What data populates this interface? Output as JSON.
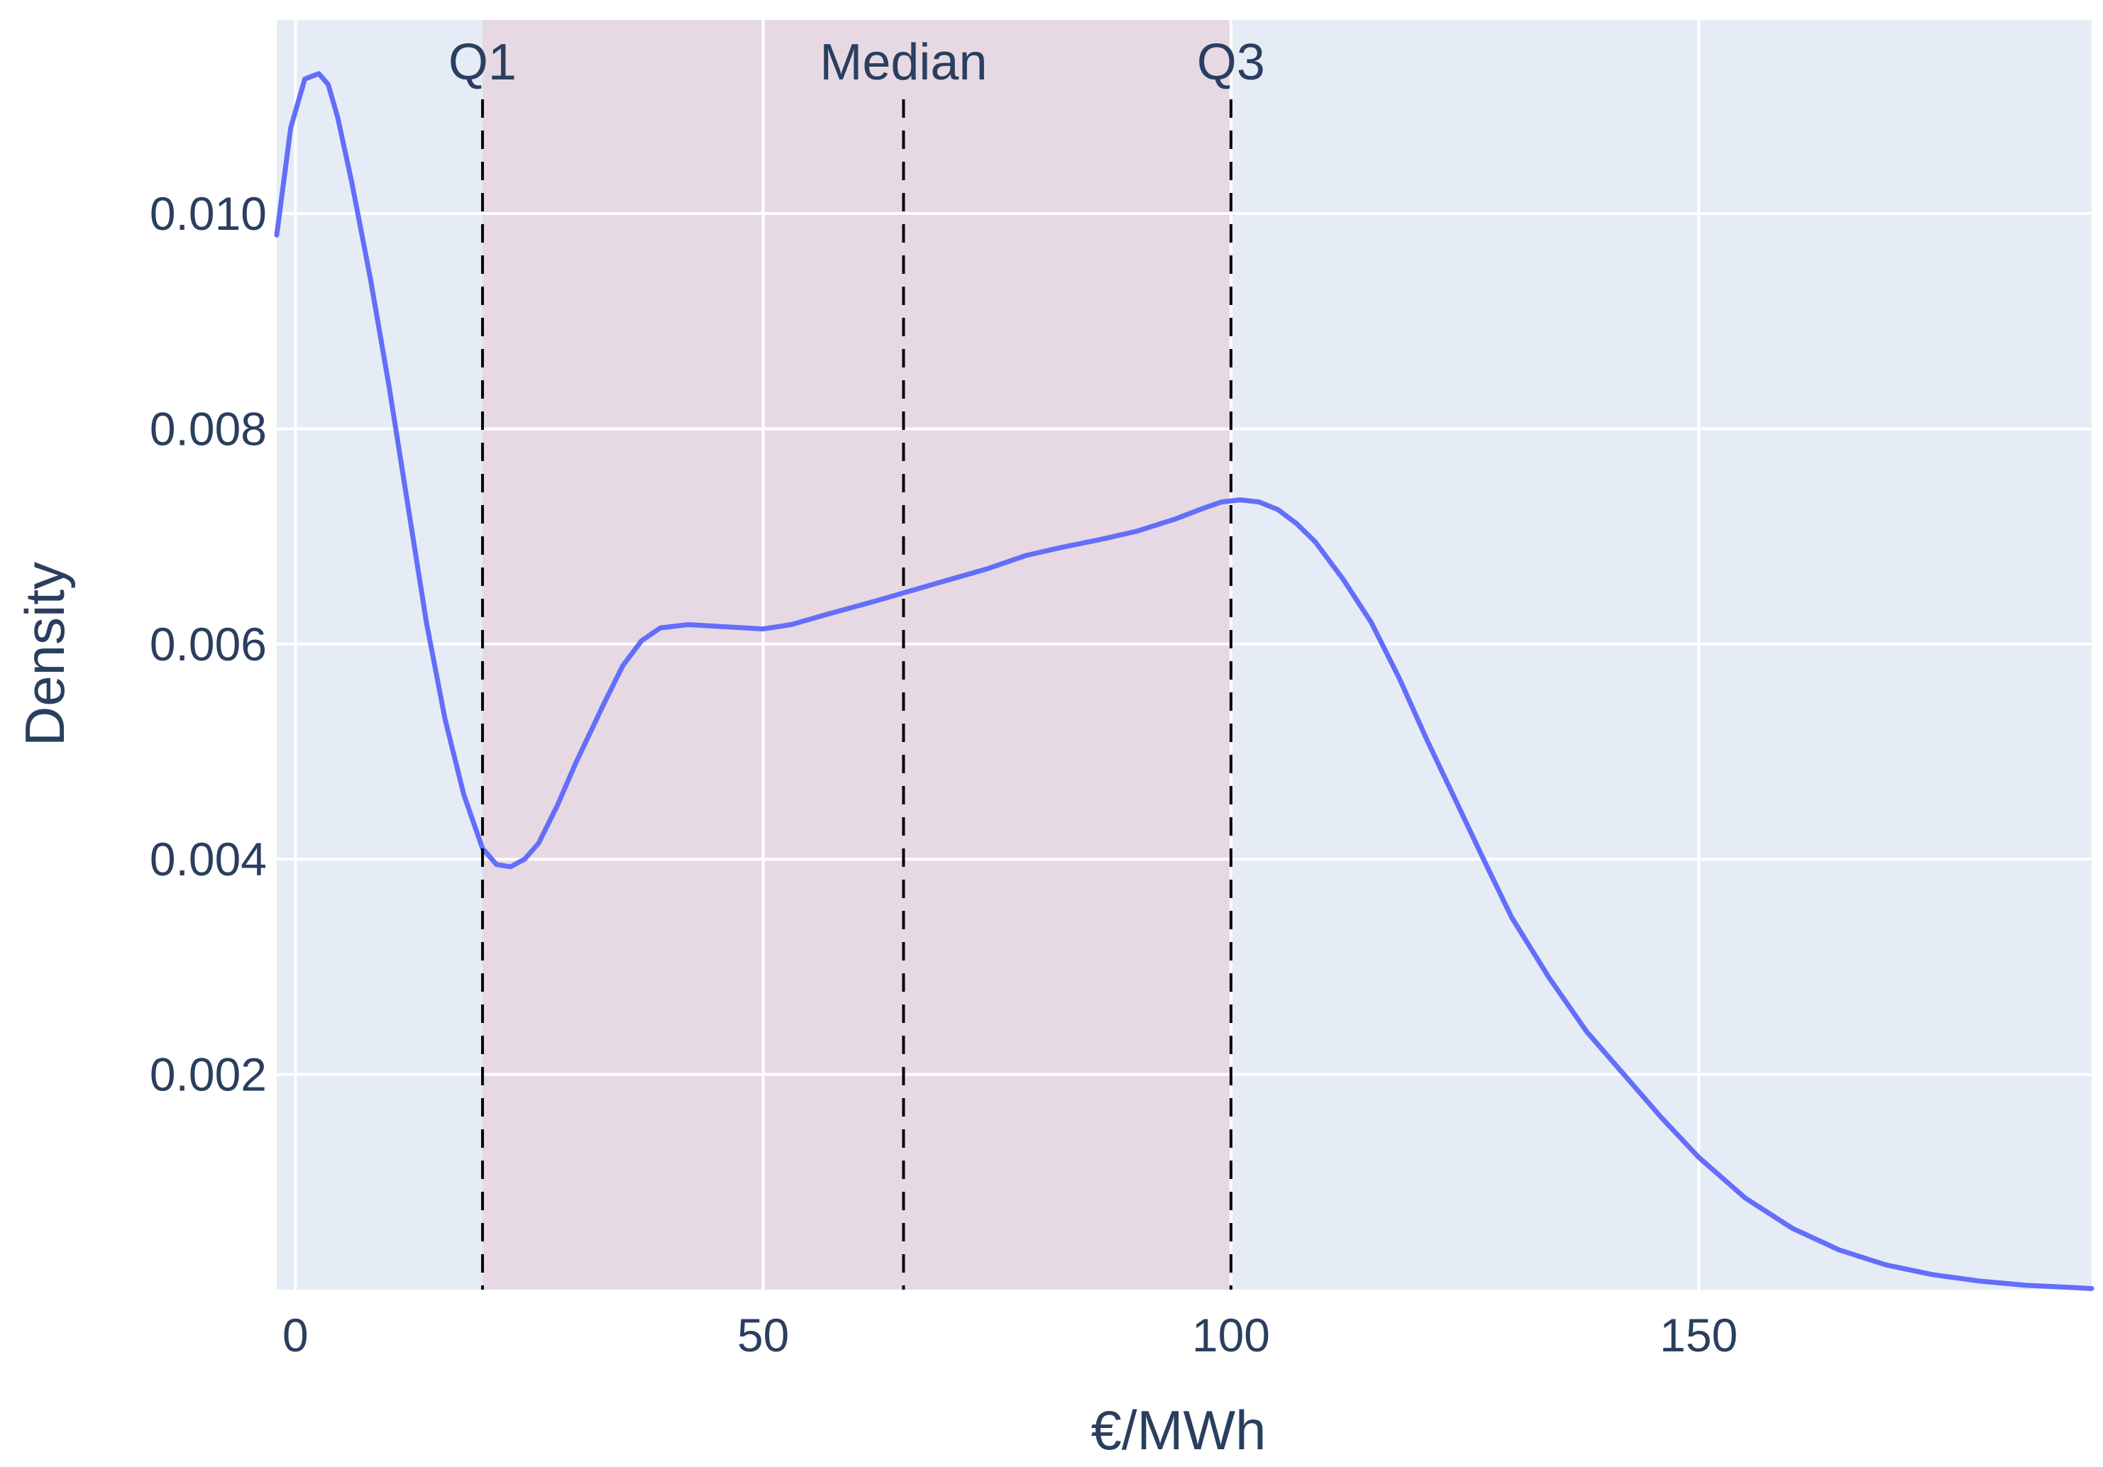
{
  "chart_data": {
    "type": "area",
    "title": "",
    "xlabel": "€/MWh",
    "ylabel": "Density",
    "xlim": [
      -2,
      192
    ],
    "ylim": [
      0,
      0.0118
    ],
    "x_ticks": [
      0,
      50,
      100,
      150
    ],
    "x_tick_labels": [
      "0",
      "50",
      "100",
      "150"
    ],
    "y_ticks": [
      0.002,
      0.004,
      0.006,
      0.008,
      0.01
    ],
    "y_tick_labels": [
      "0.002",
      "0.004",
      "0.006",
      "0.008",
      "0.010"
    ],
    "grid": true,
    "legend": "none",
    "quartile_band": {
      "from": 20,
      "to": 100
    },
    "markers": [
      {
        "label": "Q1",
        "x": 20
      },
      {
        "label": "Median",
        "x": 65
      },
      {
        "label": "Q3",
        "x": 100
      }
    ],
    "series": [
      {
        "x": [
          -2,
          -0.5,
          1,
          2.5,
          3.5,
          4.5,
          6,
          8,
          10,
          12,
          14,
          16,
          18,
          20,
          21.5,
          23,
          24.5,
          26,
          28,
          30,
          33,
          35,
          37,
          39,
          42,
          46,
          50,
          53,
          57,
          62,
          66,
          70,
          74,
          78,
          82,
          86,
          90,
          94,
          97,
          99,
          101,
          103,
          105,
          107,
          109,
          112,
          115,
          118,
          121,
          124,
          127,
          130,
          134,
          138,
          142,
          146,
          150,
          155,
          160,
          165,
          170,
          175,
          180,
          185,
          190,
          192
        ],
        "y": [
          0.0098,
          0.0108,
          0.01125,
          0.0113,
          0.0112,
          0.0109,
          0.0103,
          0.0094,
          0.0084,
          0.0073,
          0.0062,
          0.0053,
          0.0046,
          0.0041,
          0.00395,
          0.00393,
          0.004,
          0.00415,
          0.0045,
          0.0049,
          0.00545,
          0.0058,
          0.00603,
          0.00615,
          0.00618,
          0.00616,
          0.00614,
          0.00618,
          0.00628,
          0.0064,
          0.0065,
          0.0066,
          0.0067,
          0.00682,
          0.0069,
          0.00697,
          0.00705,
          0.00716,
          0.00726,
          0.00732,
          0.00734,
          0.00732,
          0.00725,
          0.00712,
          0.00695,
          0.0066,
          0.0062,
          0.00568,
          0.0051,
          0.00455,
          0.004,
          0.00346,
          0.0029,
          0.0024,
          0.002,
          0.0016,
          0.00123,
          0.00085,
          0.00057,
          0.00037,
          0.00023,
          0.00014,
          8e-05,
          4e-05,
          2e-05,
          1e-05
        ]
      }
    ]
  },
  "colors": {
    "plot_background": "#e5ecf6",
    "quartile_band": "#e7d9e3",
    "grid": "#ffffff",
    "line": "#636efa",
    "marker_line": "#000000",
    "text": "#2a3f5f"
  }
}
